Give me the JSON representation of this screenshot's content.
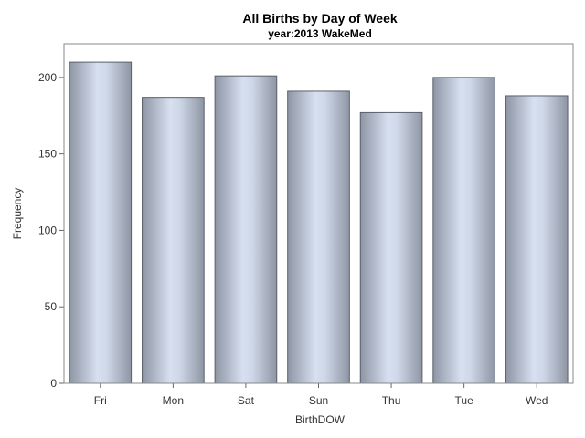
{
  "chart_data": {
    "type": "bar",
    "title": "All Births by Day of Week",
    "subtitle": "year:2013 WakeMed",
    "xlabel": "BirthDOW",
    "ylabel": "Frequency",
    "categories": [
      "Fri",
      "Mon",
      "Sat",
      "Sun",
      "Thu",
      "Tue",
      "Wed"
    ],
    "values": [
      210,
      187,
      201,
      191,
      177,
      200,
      188
    ],
    "ylim": [
      0,
      222
    ],
    "yticks": [
      0,
      50,
      100,
      150,
      200
    ],
    "grid": false,
    "legend": "none",
    "colors": {
      "bar_edge": "#9aa2b1",
      "bar_center": "#d7e0f0",
      "bar_stroke": "#5a5f6b"
    }
  }
}
